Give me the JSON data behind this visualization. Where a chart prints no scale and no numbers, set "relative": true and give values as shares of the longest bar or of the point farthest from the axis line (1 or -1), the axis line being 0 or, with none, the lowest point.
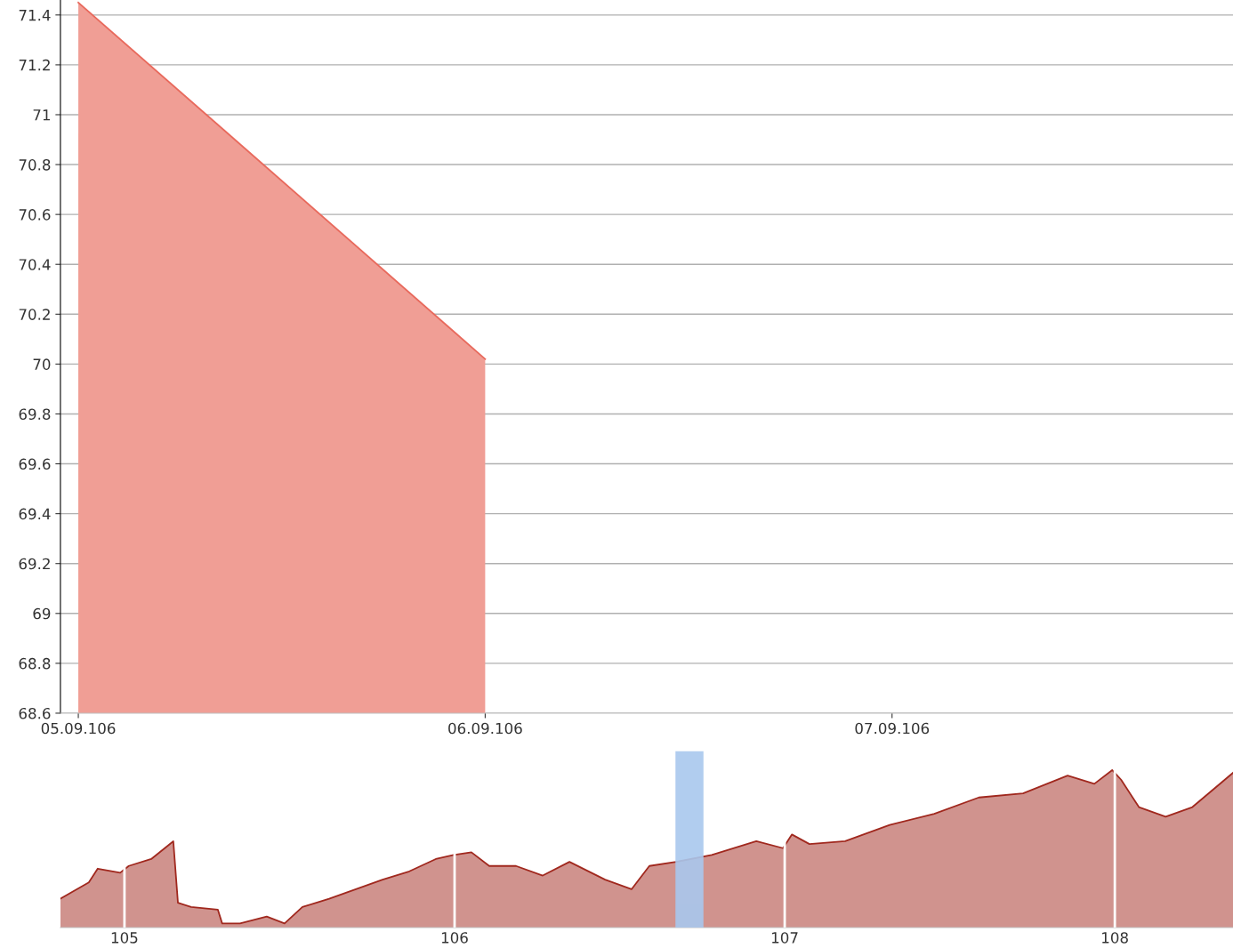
{
  "chart_data": [
    {
      "type": "area",
      "categories": [
        "05.09.106",
        "06.09.106",
        "07.09.106"
      ],
      "series": [
        {
          "color": "#e8695c",
          "values": [
            71.45,
            70.02,
            null
          ]
        }
      ],
      "ylim": [
        68.6,
        71.46
      ],
      "yticks": [
        68.6,
        68.8,
        69,
        69.2,
        69.4,
        69.6,
        69.8,
        70,
        70.2,
        70.4,
        70.6,
        70.8,
        71,
        71.2,
        71.4
      ],
      "grid": "y",
      "legend": false,
      "marker": "none",
      "line_style": "solid"
    },
    {
      "type": "area",
      "relative": true,
      "x": [
        104.806,
        104.892,
        104.919,
        104.987,
        105.013,
        105.081,
        105.148,
        105.162,
        105.202,
        105.283,
        105.296,
        105.35,
        105.431,
        105.485,
        105.539,
        105.62,
        105.701,
        105.782,
        105.863,
        105.943,
        105.997,
        106.051,
        106.105,
        106.186,
        106.267,
        106.348,
        106.456,
        106.536,
        106.59,
        106.671,
        106.779,
        106.914,
        106.995,
        107.022,
        107.075,
        107.183,
        107.318,
        107.453,
        107.588,
        107.722,
        107.857,
        107.938,
        107.992,
        108.019,
        108.073,
        108.154,
        108.235,
        108.358
      ],
      "series": [
        {
          "color": "#a0281e",
          "values": [
            0.183,
            0.287,
            0.374,
            0.348,
            0.391,
            0.435,
            0.548,
            0.157,
            0.13,
            0.113,
            0.026,
            0.026,
            0.07,
            0.026,
            0.13,
            0.183,
            0.243,
            0.304,
            0.357,
            0.435,
            0.461,
            0.478,
            0.391,
            0.391,
            0.33,
            0.417,
            0.304,
            0.243,
            0.391,
            0.417,
            0.461,
            0.548,
            0.504,
            0.591,
            0.53,
            0.548,
            0.652,
            0.722,
            0.826,
            0.852,
            0.965,
            0.913,
            1.0,
            0.939,
            0.765,
            0.704,
            0.765,
            0.983
          ]
        }
      ],
      "xlim": [
        104.806,
        108.358
      ],
      "xticks": [
        105,
        106,
        107,
        108
      ],
      "bands": [
        {
          "axis": "x",
          "from": 106.671,
          "to": 106.752,
          "color": "#a9c8ee"
        }
      ],
      "grid": "x",
      "legend": false,
      "marker": "none",
      "line_style": "solid"
    }
  ]
}
